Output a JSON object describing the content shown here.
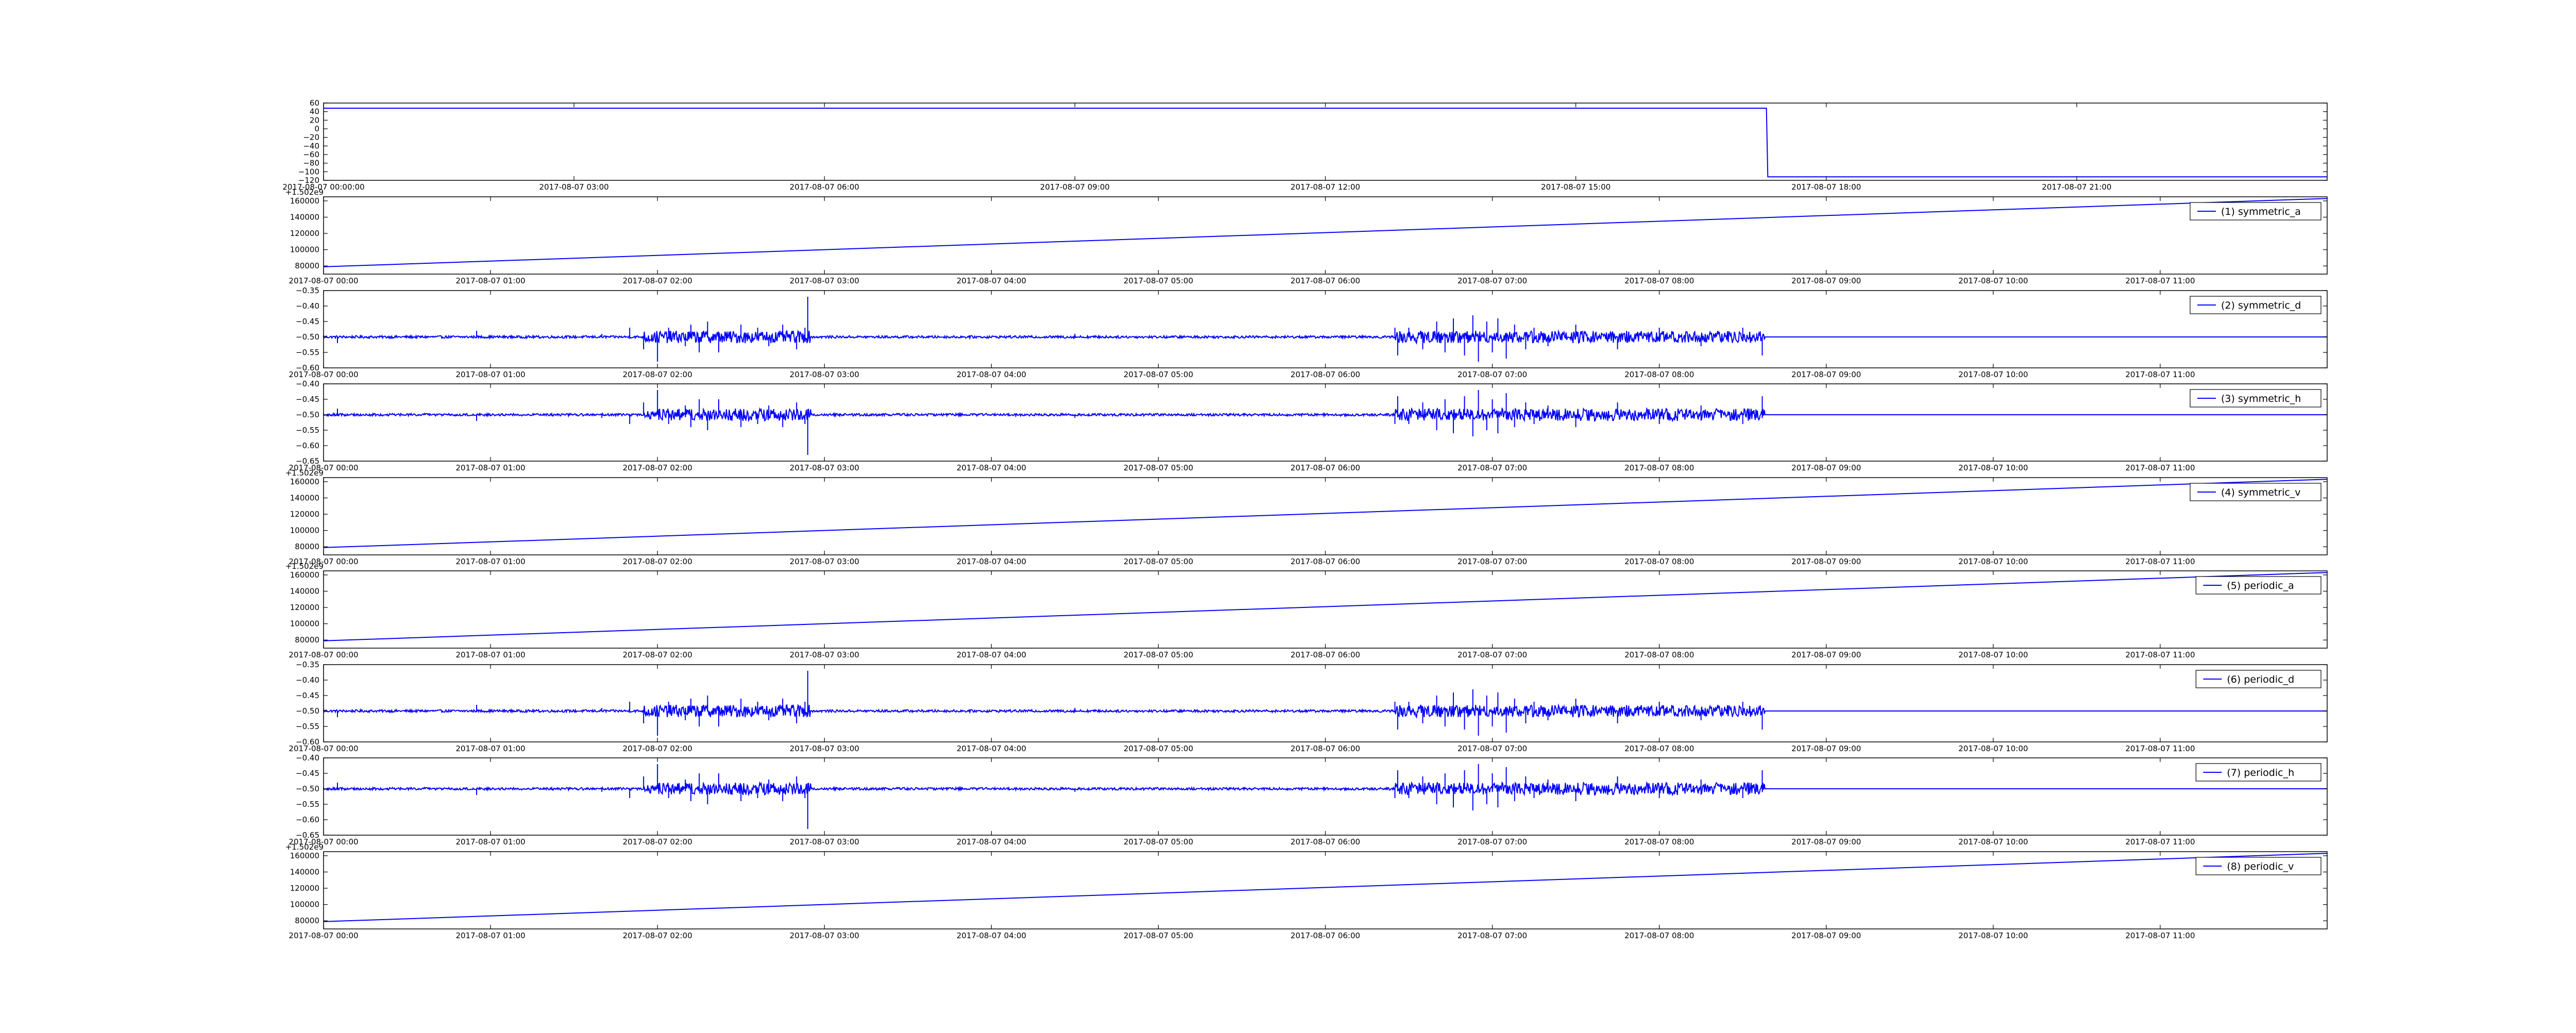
{
  "line_color": "#0000ff",
  "chart_data": [
    {
      "type": "line",
      "x_unit": "datetime",
      "xlim": [
        "2017-08-07 00:00",
        "2017-08-07 24:00"
      ],
      "xticks": [
        "2017-08-07 00:00:00",
        "2017-08-07 03:00",
        "2017-08-07 06:00",
        "2017-08-07 09:00",
        "2017-08-07 12:00",
        "2017-08-07 15:00",
        "2017-08-07 18:00",
        "2017-08-07 21:00"
      ],
      "ylim": [
        -120,
        60
      ],
      "yticks": [
        "60",
        "40",
        "20",
        "0",
        "−20",
        "−40",
        "−60",
        "−80",
        "−100",
        "−120"
      ],
      "offset_text": "",
      "series": [
        {
          "name": "",
          "x": [
            "2017-08-07 00:00",
            "2017-08-07 17:17",
            "2017-08-07 17:18",
            "2017-08-07 24:00"
          ],
          "y": [
            48,
            48,
            -112,
            -112
          ]
        }
      ]
    },
    {
      "type": "line",
      "x_unit": "datetime",
      "xlim": [
        "2017-08-07 00:00",
        "2017-08-07 12:00"
      ],
      "xticks": [
        "2017-08-07 00:00",
        "2017-08-07 01:00",
        "2017-08-07 02:00",
        "2017-08-07 03:00",
        "2017-08-07 04:00",
        "2017-08-07 05:00",
        "2017-08-07 06:00",
        "2017-08-07 07:00",
        "2017-08-07 08:00",
        "2017-08-07 09:00",
        "2017-08-07 10:00",
        "2017-08-07 11:00"
      ],
      "ylim": [
        70000,
        165000
      ],
      "yticks": [
        "160000",
        "140000",
        "120000",
        "100000",
        "80000"
      ],
      "offset_text": "+1.502e9",
      "series": [
        {
          "name": "(1) symmetric_a",
          "x": [
            "2017-08-07 00:00",
            "2017-08-07 12:00"
          ],
          "y": [
            79000,
            163000
          ]
        }
      ]
    },
    {
      "type": "line",
      "x_unit": "datetime",
      "xlim": [
        "2017-08-07 00:00",
        "2017-08-07 12:00"
      ],
      "xticks": [
        "2017-08-07 00:00",
        "2017-08-07 01:00",
        "2017-08-07 02:00",
        "2017-08-07 03:00",
        "2017-08-07 04:00",
        "2017-08-07 05:00",
        "2017-08-07 06:00",
        "2017-08-07 07:00",
        "2017-08-07 08:00",
        "2017-08-07 09:00",
        "2017-08-07 10:00",
        "2017-08-07 11:00"
      ],
      "ylim": [
        -0.6,
        -0.35
      ],
      "yticks": [
        "−0.35",
        "−0.40",
        "−0.45",
        "−0.50",
        "−0.55",
        "−0.60"
      ],
      "offset_text": "",
      "series": [
        {
          "name": "(2) symmetric_d",
          "baseline": -0.5,
          "end_of_noise": "2017-08-07 08:38",
          "x": [
            "2017-08-07 00:00",
            "2017-08-07 00:05",
            "2017-08-07 00:55",
            "2017-08-07 01:40",
            "2017-08-07 01:50",
            "2017-08-07 01:55",
            "2017-08-07 02:00",
            "2017-08-07 02:04",
            "2017-08-07 02:10",
            "2017-08-07 02:12",
            "2017-08-07 02:15",
            "2017-08-07 02:18",
            "2017-08-07 02:22",
            "2017-08-07 02:30",
            "2017-08-07 02:36",
            "2017-08-07 02:40",
            "2017-08-07 02:45",
            "2017-08-07 02:50",
            "2017-08-07 02:53",
            "2017-08-07 02:54",
            "2017-08-07 04:30",
            "2017-08-07 06:25",
            "2017-08-07 06:26",
            "2017-08-07 06:30",
            "2017-08-07 06:35",
            "2017-08-07 06:40",
            "2017-08-07 06:43",
            "2017-08-07 06:46",
            "2017-08-07 06:50",
            "2017-08-07 06:53",
            "2017-08-07 06:55",
            "2017-08-07 06:58",
            "2017-08-07 07:00",
            "2017-08-07 07:02",
            "2017-08-07 07:05",
            "2017-08-07 07:08",
            "2017-08-07 07:12",
            "2017-08-07 07:15",
            "2017-08-07 07:20",
            "2017-08-07 07:30",
            "2017-08-07 07:45",
            "2017-08-07 08:00",
            "2017-08-07 08:15",
            "2017-08-07 08:30",
            "2017-08-07 08:35",
            "2017-08-07 08:37"
          ],
          "y": [
            -0.5,
            -0.52,
            -0.48,
            -0.49,
            -0.47,
            -0.54,
            -0.58,
            -0.47,
            -0.53,
            -0.46,
            -0.55,
            -0.45,
            -0.55,
            -0.46,
            -0.47,
            -0.53,
            -0.46,
            -0.54,
            -0.47,
            -0.37,
            -0.49,
            -0.47,
            -0.56,
            -0.47,
            -0.54,
            -0.45,
            -0.55,
            -0.44,
            -0.56,
            -0.43,
            -0.58,
            -0.45,
            -0.55,
            -0.44,
            -0.57,
            -0.46,
            -0.54,
            -0.47,
            -0.53,
            -0.46,
            -0.54,
            -0.47,
            -0.53,
            -0.47,
            -0.49,
            -0.56
          ]
        }
      ]
    },
    {
      "type": "line",
      "x_unit": "datetime",
      "xlim": [
        "2017-08-07 00:00",
        "2017-08-07 12:00"
      ],
      "xticks": [
        "2017-08-07 00:00",
        "2017-08-07 01:00",
        "2017-08-07 02:00",
        "2017-08-07 03:00",
        "2017-08-07 04:00",
        "2017-08-07 05:00",
        "2017-08-07 06:00",
        "2017-08-07 07:00",
        "2017-08-07 08:00",
        "2017-08-07 09:00",
        "2017-08-07 10:00",
        "2017-08-07 11:00"
      ],
      "ylim": [
        -0.65,
        -0.4
      ],
      "yticks": [
        "−0.40",
        "−0.45",
        "−0.50",
        "−0.55",
        "−0.60",
        "−0.65"
      ],
      "offset_text": "",
      "series": [
        {
          "name": "(3) symmetric_h",
          "baseline": -0.5,
          "end_of_noise": "2017-08-07 08:38",
          "x": [
            "2017-08-07 00:00",
            "2017-08-07 00:05",
            "2017-08-07 00:55",
            "2017-08-07 01:40",
            "2017-08-07 01:50",
            "2017-08-07 01:55",
            "2017-08-07 02:00",
            "2017-08-07 02:04",
            "2017-08-07 02:10",
            "2017-08-07 02:12",
            "2017-08-07 02:15",
            "2017-08-07 02:18",
            "2017-08-07 02:22",
            "2017-08-07 02:30",
            "2017-08-07 02:36",
            "2017-08-07 02:40",
            "2017-08-07 02:45",
            "2017-08-07 02:50",
            "2017-08-07 02:53",
            "2017-08-07 02:54",
            "2017-08-07 04:30",
            "2017-08-07 06:25",
            "2017-08-07 06:26",
            "2017-08-07 06:30",
            "2017-08-07 06:35",
            "2017-08-07 06:40",
            "2017-08-07 06:43",
            "2017-08-07 06:46",
            "2017-08-07 06:50",
            "2017-08-07 06:53",
            "2017-08-07 06:55",
            "2017-08-07 06:58",
            "2017-08-07 07:00",
            "2017-08-07 07:02",
            "2017-08-07 07:05",
            "2017-08-07 07:08",
            "2017-08-07 07:12",
            "2017-08-07 07:15",
            "2017-08-07 07:20",
            "2017-08-07 07:30",
            "2017-08-07 07:45",
            "2017-08-07 08:00",
            "2017-08-07 08:15",
            "2017-08-07 08:30",
            "2017-08-07 08:35",
            "2017-08-07 08:37"
          ],
          "y": [
            -0.5,
            -0.48,
            -0.52,
            -0.51,
            -0.53,
            -0.46,
            -0.42,
            -0.53,
            -0.47,
            -0.54,
            -0.45,
            -0.55,
            -0.45,
            -0.54,
            -0.53,
            -0.47,
            -0.54,
            -0.46,
            -0.53,
            -0.63,
            -0.51,
            -0.53,
            -0.44,
            -0.53,
            -0.46,
            -0.55,
            -0.45,
            -0.56,
            -0.44,
            -0.57,
            -0.42,
            -0.55,
            -0.45,
            -0.56,
            -0.43,
            -0.54,
            -0.46,
            -0.53,
            -0.47,
            -0.54,
            -0.46,
            -0.53,
            -0.47,
            -0.53,
            -0.51,
            -0.44
          ]
        }
      ]
    },
    {
      "type": "line",
      "x_unit": "datetime",
      "xlim": [
        "2017-08-07 00:00",
        "2017-08-07 12:00"
      ],
      "xticks": [
        "2017-08-07 00:00",
        "2017-08-07 01:00",
        "2017-08-07 02:00",
        "2017-08-07 03:00",
        "2017-08-07 04:00",
        "2017-08-07 05:00",
        "2017-08-07 06:00",
        "2017-08-07 07:00",
        "2017-08-07 08:00",
        "2017-08-07 09:00",
        "2017-08-07 10:00",
        "2017-08-07 11:00"
      ],
      "ylim": [
        70000,
        165000
      ],
      "yticks": [
        "160000",
        "140000",
        "120000",
        "100000",
        "80000"
      ],
      "offset_text": "+1.502e9",
      "series": [
        {
          "name": "(4) symmetric_v",
          "x": [
            "2017-08-07 00:00",
            "2017-08-07 12:00"
          ],
          "y": [
            79000,
            163000
          ]
        }
      ]
    },
    {
      "type": "line",
      "x_unit": "datetime",
      "xlim": [
        "2017-08-07 00:00",
        "2017-08-07 12:00"
      ],
      "xticks": [
        "2017-08-07 00:00",
        "2017-08-07 01:00",
        "2017-08-07 02:00",
        "2017-08-07 03:00",
        "2017-08-07 04:00",
        "2017-08-07 05:00",
        "2017-08-07 06:00",
        "2017-08-07 07:00",
        "2017-08-07 08:00",
        "2017-08-07 09:00",
        "2017-08-07 10:00",
        "2017-08-07 11:00"
      ],
      "ylim": [
        70000,
        165000
      ],
      "yticks": [
        "160000",
        "140000",
        "120000",
        "100000",
        "80000"
      ],
      "offset_text": "+1.502e9",
      "series": [
        {
          "name": "(5) periodic_a",
          "x": [
            "2017-08-07 00:00",
            "2017-08-07 12:00"
          ],
          "y": [
            79000,
            163000
          ]
        }
      ]
    },
    {
      "type": "line",
      "x_unit": "datetime",
      "xlim": [
        "2017-08-07 00:00",
        "2017-08-07 12:00"
      ],
      "xticks": [
        "2017-08-07 00:00",
        "2017-08-07 01:00",
        "2017-08-07 02:00",
        "2017-08-07 03:00",
        "2017-08-07 04:00",
        "2017-08-07 05:00",
        "2017-08-07 06:00",
        "2017-08-07 07:00",
        "2017-08-07 08:00",
        "2017-08-07 09:00",
        "2017-08-07 10:00",
        "2017-08-07 11:00"
      ],
      "ylim": [
        -0.6,
        -0.35
      ],
      "yticks": [
        "−0.35",
        "−0.40",
        "−0.45",
        "−0.50",
        "−0.55",
        "−0.60"
      ],
      "offset_text": "",
      "series": [
        {
          "name": "(6) periodic_d",
          "baseline": -0.5,
          "end_of_noise": "2017-08-07 08:38",
          "x": [
            "2017-08-07 00:00",
            "2017-08-07 00:05",
            "2017-08-07 00:55",
            "2017-08-07 01:40",
            "2017-08-07 01:50",
            "2017-08-07 01:55",
            "2017-08-07 02:00",
            "2017-08-07 02:04",
            "2017-08-07 02:10",
            "2017-08-07 02:12",
            "2017-08-07 02:15",
            "2017-08-07 02:18",
            "2017-08-07 02:22",
            "2017-08-07 02:30",
            "2017-08-07 02:36",
            "2017-08-07 02:40",
            "2017-08-07 02:45",
            "2017-08-07 02:50",
            "2017-08-07 02:53",
            "2017-08-07 02:54",
            "2017-08-07 04:30",
            "2017-08-07 06:25",
            "2017-08-07 06:26",
            "2017-08-07 06:30",
            "2017-08-07 06:35",
            "2017-08-07 06:40",
            "2017-08-07 06:43",
            "2017-08-07 06:46",
            "2017-08-07 06:50",
            "2017-08-07 06:53",
            "2017-08-07 06:55",
            "2017-08-07 06:58",
            "2017-08-07 07:00",
            "2017-08-07 07:02",
            "2017-08-07 07:05",
            "2017-08-07 07:08",
            "2017-08-07 07:12",
            "2017-08-07 07:15",
            "2017-08-07 07:20",
            "2017-08-07 07:30",
            "2017-08-07 07:45",
            "2017-08-07 08:00",
            "2017-08-07 08:15",
            "2017-08-07 08:30",
            "2017-08-07 08:35",
            "2017-08-07 08:37"
          ],
          "y": [
            -0.5,
            -0.52,
            -0.48,
            -0.49,
            -0.47,
            -0.54,
            -0.58,
            -0.47,
            -0.53,
            -0.46,
            -0.55,
            -0.45,
            -0.55,
            -0.46,
            -0.47,
            -0.53,
            -0.46,
            -0.54,
            -0.47,
            -0.37,
            -0.49,
            -0.47,
            -0.56,
            -0.47,
            -0.54,
            -0.45,
            -0.55,
            -0.44,
            -0.56,
            -0.43,
            -0.58,
            -0.45,
            -0.55,
            -0.44,
            -0.57,
            -0.46,
            -0.54,
            -0.47,
            -0.53,
            -0.46,
            -0.54,
            -0.47,
            -0.53,
            -0.47,
            -0.49,
            -0.56
          ]
        }
      ]
    },
    {
      "type": "line",
      "x_unit": "datetime",
      "xlim": [
        "2017-08-07 00:00",
        "2017-08-07 12:00"
      ],
      "xticks": [
        "2017-08-07 00:00",
        "2017-08-07 01:00",
        "2017-08-07 02:00",
        "2017-08-07 03:00",
        "2017-08-07 04:00",
        "2017-08-07 05:00",
        "2017-08-07 06:00",
        "2017-08-07 07:00",
        "2017-08-07 08:00",
        "2017-08-07 09:00",
        "2017-08-07 10:00",
        "2017-08-07 11:00"
      ],
      "ylim": [
        -0.65,
        -0.4
      ],
      "yticks": [
        "−0.40",
        "−0.45",
        "−0.50",
        "−0.55",
        "−0.60",
        "−0.65"
      ],
      "offset_text": "",
      "series": [
        {
          "name": "(7) periodic_h",
          "baseline": -0.5,
          "end_of_noise": "2017-08-07 08:38",
          "x": [
            "2017-08-07 00:00",
            "2017-08-07 00:05",
            "2017-08-07 00:55",
            "2017-08-07 01:40",
            "2017-08-07 01:50",
            "2017-08-07 01:55",
            "2017-08-07 02:00",
            "2017-08-07 02:04",
            "2017-08-07 02:10",
            "2017-08-07 02:12",
            "2017-08-07 02:15",
            "2017-08-07 02:18",
            "2017-08-07 02:22",
            "2017-08-07 02:30",
            "2017-08-07 02:36",
            "2017-08-07 02:40",
            "2017-08-07 02:45",
            "2017-08-07 02:50",
            "2017-08-07 02:53",
            "2017-08-07 02:54",
            "2017-08-07 04:30",
            "2017-08-07 06:25",
            "2017-08-07 06:26",
            "2017-08-07 06:30",
            "2017-08-07 06:35",
            "2017-08-07 06:40",
            "2017-08-07 06:43",
            "2017-08-07 06:46",
            "2017-08-07 06:50",
            "2017-08-07 06:53",
            "2017-08-07 06:55",
            "2017-08-07 06:58",
            "2017-08-07 07:00",
            "2017-08-07 07:02",
            "2017-08-07 07:05",
            "2017-08-07 07:08",
            "2017-08-07 07:12",
            "2017-08-07 07:15",
            "2017-08-07 07:20",
            "2017-08-07 07:30",
            "2017-08-07 07:45",
            "2017-08-07 08:00",
            "2017-08-07 08:15",
            "2017-08-07 08:30",
            "2017-08-07 08:35",
            "2017-08-07 08:37"
          ],
          "y": [
            -0.5,
            -0.48,
            -0.52,
            -0.51,
            -0.53,
            -0.46,
            -0.42,
            -0.53,
            -0.47,
            -0.54,
            -0.45,
            -0.55,
            -0.45,
            -0.54,
            -0.53,
            -0.47,
            -0.54,
            -0.46,
            -0.53,
            -0.63,
            -0.51,
            -0.53,
            -0.44,
            -0.53,
            -0.46,
            -0.55,
            -0.45,
            -0.56,
            -0.44,
            -0.57,
            -0.42,
            -0.55,
            -0.45,
            -0.56,
            -0.43,
            -0.54,
            -0.46,
            -0.53,
            -0.47,
            -0.54,
            -0.46,
            -0.53,
            -0.47,
            -0.53,
            -0.51,
            -0.44
          ]
        }
      ]
    },
    {
      "type": "line",
      "x_unit": "datetime",
      "xlim": [
        "2017-08-07 00:00",
        "2017-08-07 12:00"
      ],
      "xticks": [
        "2017-08-07 00:00",
        "2017-08-07 01:00",
        "2017-08-07 02:00",
        "2017-08-07 03:00",
        "2017-08-07 04:00",
        "2017-08-07 05:00",
        "2017-08-07 06:00",
        "2017-08-07 07:00",
        "2017-08-07 08:00",
        "2017-08-07 09:00",
        "2017-08-07 10:00",
        "2017-08-07 11:00"
      ],
      "ylim": [
        70000,
        165000
      ],
      "yticks": [
        "160000",
        "140000",
        "120000",
        "100000",
        "80000"
      ],
      "offset_text": "+1.502e9",
      "series": [
        {
          "name": "(8) periodic_v",
          "x": [
            "2017-08-07 00:00",
            "2017-08-07 12:00"
          ],
          "y": [
            79000,
            163000
          ]
        }
      ]
    }
  ]
}
